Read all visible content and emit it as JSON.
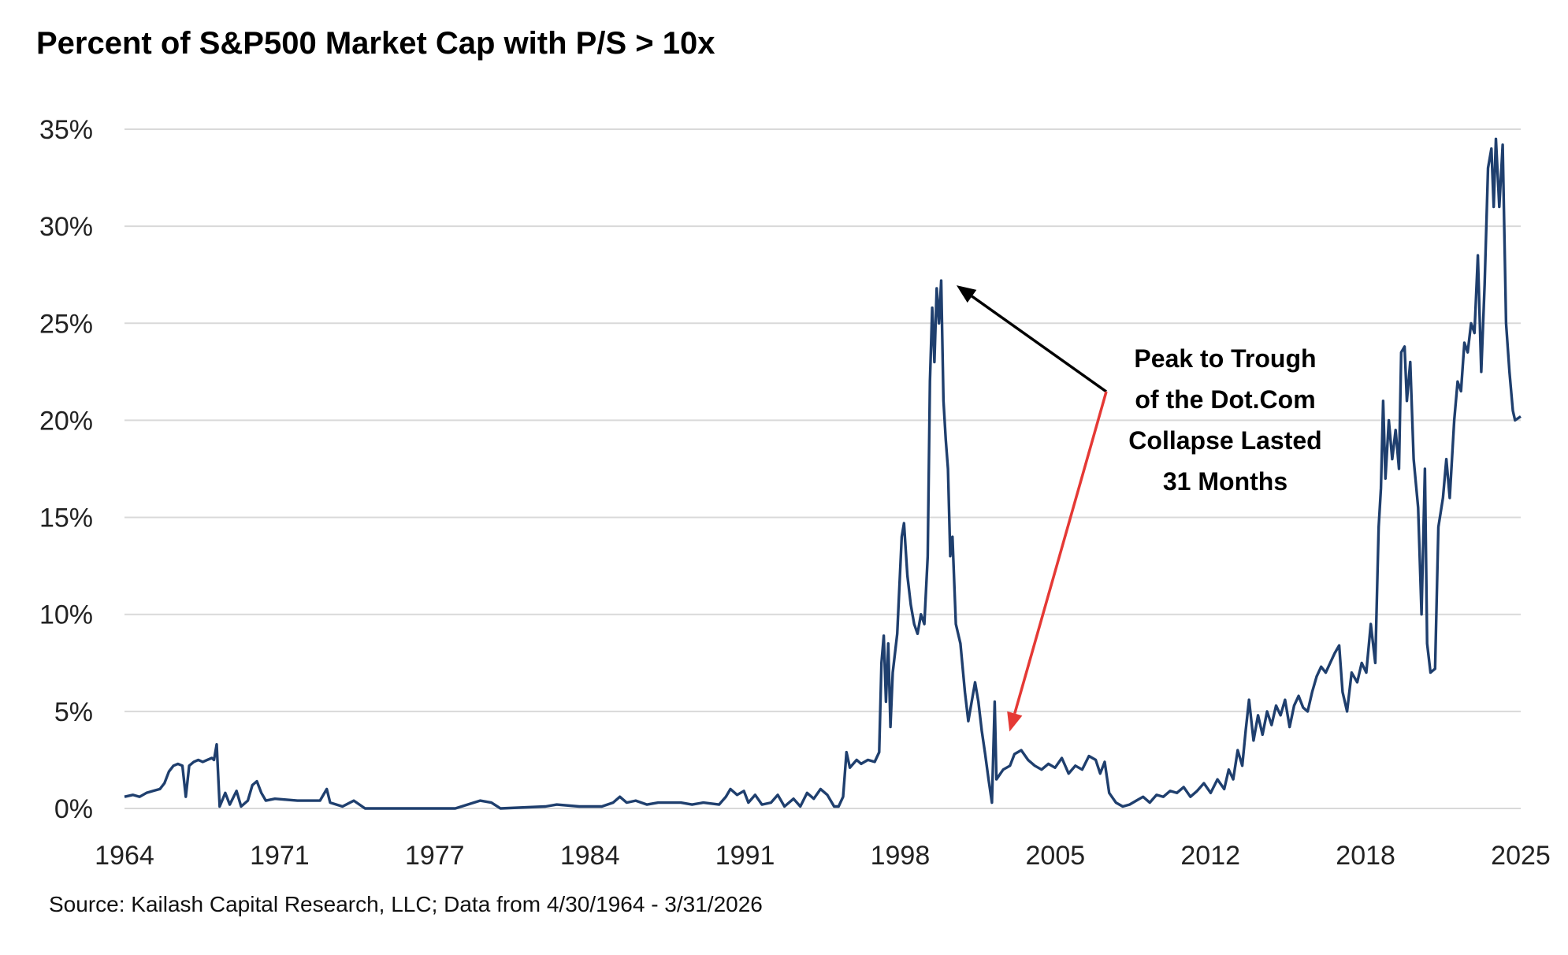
{
  "chart_data": {
    "type": "line",
    "title": "Percent of S&P500 Market Cap with P/S > 10x",
    "xlabel": "",
    "ylabel": "",
    "xlim": [
      1964.33,
      2026.25
    ],
    "ylim": [
      0,
      35
    ],
    "grid": true,
    "x_ticks": [
      {
        "value": 1964,
        "label": "1964"
      },
      {
        "value": 1971,
        "label": "1971"
      },
      {
        "value": 1977,
        "label": "1977"
      },
      {
        "value": 1984,
        "label": "1984"
      },
      {
        "value": 1991,
        "label": "1991"
      },
      {
        "value": 1998,
        "label": "1998"
      },
      {
        "value": 2005,
        "label": "2005"
      },
      {
        "value": 2012,
        "label": "2012"
      },
      {
        "value": 2018,
        "label": "2018"
      },
      {
        "value": 2025,
        "label": "2025"
      }
    ],
    "y_ticks": [
      {
        "value": 0,
        "label": "0%"
      },
      {
        "value": 5,
        "label": "5%"
      },
      {
        "value": 10,
        "label": "10%"
      },
      {
        "value": 15,
        "label": "15%"
      },
      {
        "value": 20,
        "label": "20%"
      },
      {
        "value": 25,
        "label": "25%"
      },
      {
        "value": 30,
        "label": "30%"
      },
      {
        "value": 35,
        "label": "35%"
      }
    ],
    "series": [
      {
        "name": "Percent of S&P500 Market Cap with P/S > 10x",
        "color": "#1f3f6e",
        "points": [
          [
            1964.33,
            0.6
          ],
          [
            1964.7,
            0.7
          ],
          [
            1965.0,
            0.6
          ],
          [
            1965.3,
            0.8
          ],
          [
            1965.6,
            0.9
          ],
          [
            1965.9,
            1.0
          ],
          [
            1966.1,
            1.3
          ],
          [
            1966.3,
            1.9
          ],
          [
            1966.5,
            2.2
          ],
          [
            1966.7,
            2.3
          ],
          [
            1966.9,
            2.2
          ],
          [
            1967.05,
            0.6
          ],
          [
            1967.2,
            2.2
          ],
          [
            1967.4,
            2.4
          ],
          [
            1967.6,
            2.5
          ],
          [
            1967.8,
            2.4
          ],
          [
            1968.0,
            2.5
          ],
          [
            1968.2,
            2.6
          ],
          [
            1968.3,
            2.5
          ],
          [
            1968.42,
            3.3
          ],
          [
            1968.55,
            0.1
          ],
          [
            1968.8,
            0.8
          ],
          [
            1969.0,
            0.2
          ],
          [
            1969.3,
            0.9
          ],
          [
            1969.5,
            0.1
          ],
          [
            1969.8,
            0.4
          ],
          [
            1970.0,
            1.2
          ],
          [
            1970.2,
            1.4
          ],
          [
            1970.4,
            0.8
          ],
          [
            1970.6,
            0.4
          ],
          [
            1971.0,
            0.5
          ],
          [
            1972.0,
            0.4
          ],
          [
            1973.0,
            0.4
          ],
          [
            1973.3,
            1.0
          ],
          [
            1973.45,
            0.3
          ],
          [
            1974.0,
            0.1
          ],
          [
            1974.5,
            0.4
          ],
          [
            1975.0,
            0.0
          ],
          [
            1977.0,
            0.0
          ],
          [
            1979.0,
            0.0
          ],
          [
            1980.1,
            0.4
          ],
          [
            1980.6,
            0.3
          ],
          [
            1981.0,
            0.0
          ],
          [
            1983.0,
            0.1
          ],
          [
            1983.5,
            0.2
          ],
          [
            1984.5,
            0.1
          ],
          [
            1985.5,
            0.1
          ],
          [
            1986.0,
            0.3
          ],
          [
            1986.3,
            0.6
          ],
          [
            1986.6,
            0.3
          ],
          [
            1987.0,
            0.4
          ],
          [
            1987.5,
            0.2
          ],
          [
            1988.0,
            0.3
          ],
          [
            1989.0,
            0.3
          ],
          [
            1989.5,
            0.2
          ],
          [
            1990.0,
            0.3
          ],
          [
            1990.7,
            0.2
          ],
          [
            1991.0,
            0.6
          ],
          [
            1991.2,
            1.0
          ],
          [
            1991.5,
            0.7
          ],
          [
            1991.8,
            0.9
          ],
          [
            1992.0,
            0.3
          ],
          [
            1992.3,
            0.7
          ],
          [
            1992.6,
            0.2
          ],
          [
            1993.0,
            0.3
          ],
          [
            1993.3,
            0.7
          ],
          [
            1993.6,
            0.1
          ],
          [
            1994.0,
            0.5
          ],
          [
            1994.3,
            0.1
          ],
          [
            1994.6,
            0.8
          ],
          [
            1994.9,
            0.5
          ],
          [
            1995.2,
            1.0
          ],
          [
            1995.5,
            0.7
          ],
          [
            1995.8,
            0.1
          ],
          [
            1996.0,
            0.1
          ],
          [
            1996.2,
            0.6
          ],
          [
            1996.35,
            2.9
          ],
          [
            1996.5,
            2.1
          ],
          [
            1996.8,
            2.5
          ],
          [
            1997.0,
            2.3
          ],
          [
            1997.3,
            2.5
          ],
          [
            1997.6,
            2.4
          ],
          [
            1997.8,
            2.9
          ],
          [
            1997.9,
            7.5
          ],
          [
            1998.0,
            8.9
          ],
          [
            1998.1,
            5.5
          ],
          [
            1998.2,
            8.5
          ],
          [
            1998.3,
            4.2
          ],
          [
            1998.4,
            7.0
          ],
          [
            1998.6,
            9.0
          ],
          [
            1998.8,
            14.0
          ],
          [
            1998.9,
            14.7
          ],
          [
            1999.05,
            12.0
          ],
          [
            1999.2,
            10.5
          ],
          [
            1999.35,
            9.5
          ],
          [
            1999.5,
            9.0
          ],
          [
            1999.65,
            10.0
          ],
          [
            1999.8,
            9.5
          ],
          [
            1999.95,
            13.0
          ],
          [
            2000.05,
            22.0
          ],
          [
            2000.15,
            25.8
          ],
          [
            2000.25,
            23.0
          ],
          [
            2000.35,
            26.8
          ],
          [
            2000.45,
            25.0
          ],
          [
            2000.55,
            27.2
          ],
          [
            2000.65,
            21.0
          ],
          [
            2000.75,
            19.0
          ],
          [
            2000.85,
            17.5
          ],
          [
            2000.95,
            13.0
          ],
          [
            2001.05,
            14.0
          ],
          [
            2001.2,
            9.5
          ],
          [
            2001.4,
            8.5
          ],
          [
            2001.6,
            6.0
          ],
          [
            2001.75,
            4.5
          ],
          [
            2001.9,
            5.5
          ],
          [
            2002.05,
            6.5
          ],
          [
            2002.2,
            5.5
          ],
          [
            2002.35,
            4.0
          ],
          [
            2002.5,
            2.8
          ],
          [
            2002.65,
            1.5
          ],
          [
            2002.8,
            0.3
          ],
          [
            2002.92,
            5.5
          ],
          [
            2003.0,
            1.5
          ],
          [
            2003.3,
            2.0
          ],
          [
            2003.6,
            2.2
          ],
          [
            2003.8,
            2.8
          ],
          [
            2004.1,
            3.0
          ],
          [
            2004.4,
            2.5
          ],
          [
            2004.7,
            2.2
          ],
          [
            2005.0,
            2.0
          ],
          [
            2005.3,
            2.3
          ],
          [
            2005.6,
            2.1
          ],
          [
            2005.9,
            2.6
          ],
          [
            2006.2,
            1.8
          ],
          [
            2006.5,
            2.2
          ],
          [
            2006.8,
            2.0
          ],
          [
            2007.1,
            2.7
          ],
          [
            2007.4,
            2.5
          ],
          [
            2007.6,
            1.8
          ],
          [
            2007.8,
            2.4
          ],
          [
            2008.0,
            0.8
          ],
          [
            2008.3,
            0.3
          ],
          [
            2008.6,
            0.1
          ],
          [
            2008.9,
            0.2
          ],
          [
            2009.2,
            0.4
          ],
          [
            2009.5,
            0.6
          ],
          [
            2009.8,
            0.3
          ],
          [
            2010.1,
            0.7
          ],
          [
            2010.4,
            0.6
          ],
          [
            2010.7,
            0.9
          ],
          [
            2011.0,
            0.8
          ],
          [
            2011.3,
            1.1
          ],
          [
            2011.6,
            0.6
          ],
          [
            2011.9,
            0.9
          ],
          [
            2012.2,
            1.3
          ],
          [
            2012.5,
            0.8
          ],
          [
            2012.8,
            1.5
          ],
          [
            2013.1,
            1.0
          ],
          [
            2013.3,
            2.0
          ],
          [
            2013.5,
            1.5
          ],
          [
            2013.7,
            3.0
          ],
          [
            2013.9,
            2.2
          ],
          [
            2014.05,
            4.0
          ],
          [
            2014.2,
            5.6
          ],
          [
            2014.4,
            3.5
          ],
          [
            2014.6,
            4.8
          ],
          [
            2014.8,
            3.8
          ],
          [
            2015.0,
            5.0
          ],
          [
            2015.2,
            4.3
          ],
          [
            2015.4,
            5.3
          ],
          [
            2015.6,
            4.8
          ],
          [
            2015.8,
            5.6
          ],
          [
            2016.0,
            4.2
          ],
          [
            2016.2,
            5.3
          ],
          [
            2016.4,
            5.8
          ],
          [
            2016.6,
            5.2
          ],
          [
            2016.8,
            5.0
          ],
          [
            2017.0,
            6.0
          ],
          [
            2017.2,
            6.8
          ],
          [
            2017.4,
            7.3
          ],
          [
            2017.6,
            7.0
          ],
          [
            2017.8,
            7.5
          ],
          [
            2018.0,
            8.0
          ],
          [
            2018.2,
            8.4
          ],
          [
            2018.35,
            6.0
          ],
          [
            2018.55,
            5.0
          ],
          [
            2018.75,
            7.0
          ],
          [
            2019.0,
            6.5
          ],
          [
            2019.2,
            7.5
          ],
          [
            2019.4,
            7.0
          ],
          [
            2019.6,
            9.5
          ],
          [
            2019.8,
            7.5
          ],
          [
            2019.95,
            14.5
          ],
          [
            2020.05,
            16.5
          ],
          [
            2020.15,
            21.0
          ],
          [
            2020.25,
            17.0
          ],
          [
            2020.4,
            20.0
          ],
          [
            2020.55,
            18.0
          ],
          [
            2020.7,
            19.5
          ],
          [
            2020.85,
            17.5
          ],
          [
            2020.95,
            23.5
          ],
          [
            2021.1,
            23.8
          ],
          [
            2021.2,
            21.0
          ],
          [
            2021.35,
            23.0
          ],
          [
            2021.5,
            18.0
          ],
          [
            2021.7,
            15.5
          ],
          [
            2021.85,
            10.0
          ],
          [
            2022.0,
            17.5
          ],
          [
            2022.1,
            8.5
          ],
          [
            2022.25,
            7.0
          ],
          [
            2022.45,
            7.2
          ],
          [
            2022.6,
            14.5
          ],
          [
            2022.8,
            16.0
          ],
          [
            2022.95,
            18.0
          ],
          [
            2023.1,
            16.0
          ],
          [
            2023.3,
            20.0
          ],
          [
            2023.45,
            22.0
          ],
          [
            2023.6,
            21.5
          ],
          [
            2023.75,
            24.0
          ],
          [
            2023.9,
            23.5
          ],
          [
            2024.05,
            25.0
          ],
          [
            2024.2,
            24.5
          ],
          [
            2024.35,
            28.5
          ],
          [
            2024.5,
            22.5
          ],
          [
            2024.65,
            27.0
          ],
          [
            2024.8,
            33.0
          ],
          [
            2024.95,
            34.0
          ],
          [
            2025.05,
            31.0
          ],
          [
            2025.15,
            34.5
          ],
          [
            2025.3,
            31.0
          ],
          [
            2025.45,
            34.2
          ],
          [
            2025.6,
            25.0
          ],
          [
            2025.75,
            22.5
          ],
          [
            2025.9,
            20.5
          ],
          [
            2026.0,
            20.0
          ],
          [
            2026.25,
            20.2
          ]
        ]
      }
    ],
    "annotation": {
      "lines": [
        "Peak to Trough",
        "of the Dot.Com",
        "Collapse Lasted",
        "31 Months"
      ],
      "arrow_peak": {
        "x": 2000.6,
        "y": 27.2,
        "color": "#000000"
      },
      "arrow_trough": {
        "x": 2003.3,
        "y": 4.2,
        "color": "#e53935"
      }
    },
    "source": "Source:  Kailash Capital Research, LLC;  Data from  4/30/1964 - 3/31/2026"
  }
}
